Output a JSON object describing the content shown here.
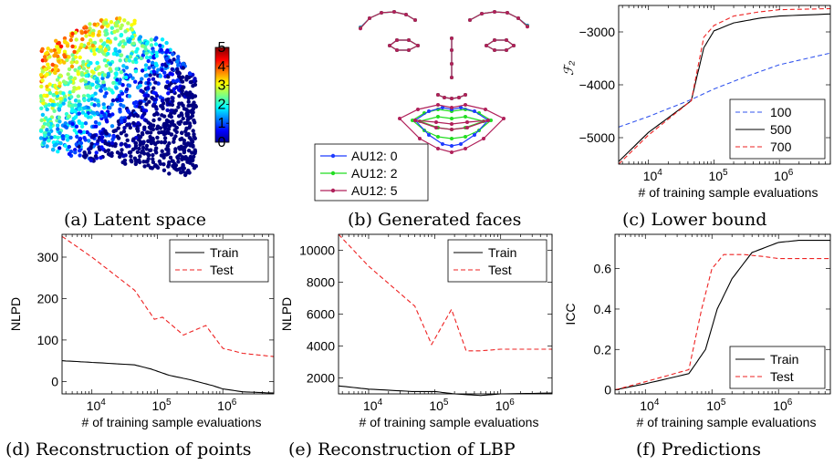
{
  "captions": {
    "a": "(a) Latent space",
    "b": "(b) Generated faces",
    "c": "(c) Lower bound",
    "d": "(d) Reconstruction of points",
    "e": "(e) Reconstruction of LBP",
    "f": "(f) Predictions"
  },
  "chart_data": [
    {
      "id": "a",
      "type": "scatter",
      "title": "",
      "colorbar": {
        "ticks": [
          "0",
          "1",
          "2",
          "3",
          "4",
          "5"
        ],
        "range": [
          0,
          5
        ],
        "colormap": "jet"
      },
      "note": "Latent space scatter of samples coloured by AU intensity (0 to 5)"
    },
    {
      "id": "b",
      "type": "diagram",
      "legend": [
        {
          "label": "AU12: 0",
          "color": "#1f3cff"
        },
        {
          "label": "AU12: 2",
          "color": "#22dd22"
        },
        {
          "label": "AU12: 5",
          "color": "#b0205a"
        }
      ]
    },
    {
      "id": "c",
      "type": "line",
      "ylabel": "F2",
      "xlabel": "# of training sample evaluations",
      "xscale": "log",
      "xlim": [
        3500,
        6000000
      ],
      "ylim": [
        -5500,
        -2500
      ],
      "xticks": [
        "10^4",
        "10^5",
        "10^6"
      ],
      "yticks": [
        "-3000",
        "-4000",
        "-5000"
      ],
      "series": [
        {
          "name": "100",
          "color": "#3355ee",
          "dash": "5,3",
          "x": [
            3500,
            10000,
            45000,
            100000,
            300000,
            1000000,
            6000000
          ],
          "y": [
            -4800,
            -4600,
            -4280,
            -4080,
            -3850,
            -3620,
            -3400
          ]
        },
        {
          "name": "500",
          "color": "#000000",
          "dash": "",
          "x": [
            3500,
            10000,
            45000,
            70000,
            100000,
            200000,
            500000,
            1000000,
            6000000
          ],
          "y": [
            -5450,
            -4900,
            -4300,
            -3300,
            -2980,
            -2830,
            -2740,
            -2700,
            -2660
          ]
        },
        {
          "name": "700",
          "color": "#ee2222",
          "dash": "5,3",
          "x": [
            3500,
            10000,
            45000,
            70000,
            100000,
            200000,
            500000,
            1000000,
            6000000
          ],
          "y": [
            -5500,
            -4950,
            -4300,
            -3100,
            -2880,
            -2700,
            -2620,
            -2580,
            -2560
          ]
        }
      ],
      "legend_position": "bottom-right"
    },
    {
      "id": "d",
      "type": "line",
      "ylabel": "NLPD",
      "xlabel": "# of training sample evaluations",
      "xscale": "log",
      "xlim": [
        3500,
        6000000
      ],
      "ylim": [
        -30,
        355
      ],
      "xticks": [
        "10^4",
        "10^5",
        "10^6"
      ],
      "yticks": [
        "0",
        "100",
        "200",
        "300"
      ],
      "series": [
        {
          "name": "Train",
          "color": "#000000",
          "dash": "",
          "x": [
            3500,
            10000,
            45000,
            80000,
            150000,
            300000,
            700000,
            1000000,
            2000000,
            6000000
          ],
          "y": [
            50,
            46,
            40,
            30,
            15,
            5,
            -10,
            -18,
            -25,
            -28
          ]
        },
        {
          "name": "Test",
          "color": "#ee2222",
          "dash": "5,3",
          "x": [
            3500,
            10000,
            45000,
            90000,
            120000,
            250000,
            550000,
            1000000,
            2000000,
            6000000
          ],
          "y": [
            350,
            300,
            220,
            150,
            155,
            112,
            135,
            80,
            68,
            60
          ]
        }
      ],
      "legend_position": "top-right"
    },
    {
      "id": "e",
      "type": "line",
      "ylabel": "NLPD",
      "xlabel": "# of training sample evaluations",
      "xscale": "log",
      "xlim": [
        3500,
        6000000
      ],
      "ylim": [
        1000,
        11000
      ],
      "xticks": [
        "10^4",
        "10^5",
        "10^6"
      ],
      "yticks": [
        "2000",
        "4000",
        "6000",
        "8000",
        "10000"
      ],
      "series": [
        {
          "name": "Train",
          "color": "#000000",
          "dash": "",
          "x": [
            3500,
            10000,
            45000,
            100000,
            200000,
            500000,
            1000000,
            6000000
          ],
          "y": [
            1500,
            1300,
            1150,
            1150,
            1000,
            900,
            1000,
            1050
          ]
        },
        {
          "name": "Test",
          "color": "#ee2222",
          "dash": "5,3",
          "x": [
            3500,
            10000,
            50000,
            90000,
            180000,
            300000,
            500000,
            1000000,
            6000000
          ],
          "y": [
            11000,
            9000,
            6500,
            4100,
            6300,
            3700,
            3700,
            3800,
            3800
          ]
        }
      ],
      "legend_position": "top-right"
    },
    {
      "id": "f",
      "type": "line",
      "ylabel": "ICC",
      "xlabel": "# of training sample evaluations",
      "xscale": "log",
      "xlim": [
        3500,
        6000000
      ],
      "ylim": [
        -0.02,
        0.77
      ],
      "xticks": [
        "10^4",
        "10^5",
        "10^6"
      ],
      "yticks": [
        "0",
        "0.2",
        "0.4",
        "0.6"
      ],
      "series": [
        {
          "name": "Train",
          "color": "#000000",
          "dash": "",
          "x": [
            3500,
            10000,
            45000,
            80000,
            120000,
            200000,
            400000,
            1000000,
            2000000,
            6000000
          ],
          "y": [
            0.0,
            0.03,
            0.08,
            0.2,
            0.4,
            0.55,
            0.68,
            0.73,
            0.74,
            0.74
          ]
        },
        {
          "name": "Test",
          "color": "#ee2222",
          "dash": "5,3",
          "x": [
            3500,
            10000,
            45000,
            70000,
            100000,
            150000,
            300000,
            600000,
            1000000,
            6000000
          ],
          "y": [
            0.0,
            0.04,
            0.1,
            0.4,
            0.6,
            0.67,
            0.67,
            0.66,
            0.65,
            0.65
          ]
        }
      ],
      "legend_position": "bottom-right"
    }
  ]
}
